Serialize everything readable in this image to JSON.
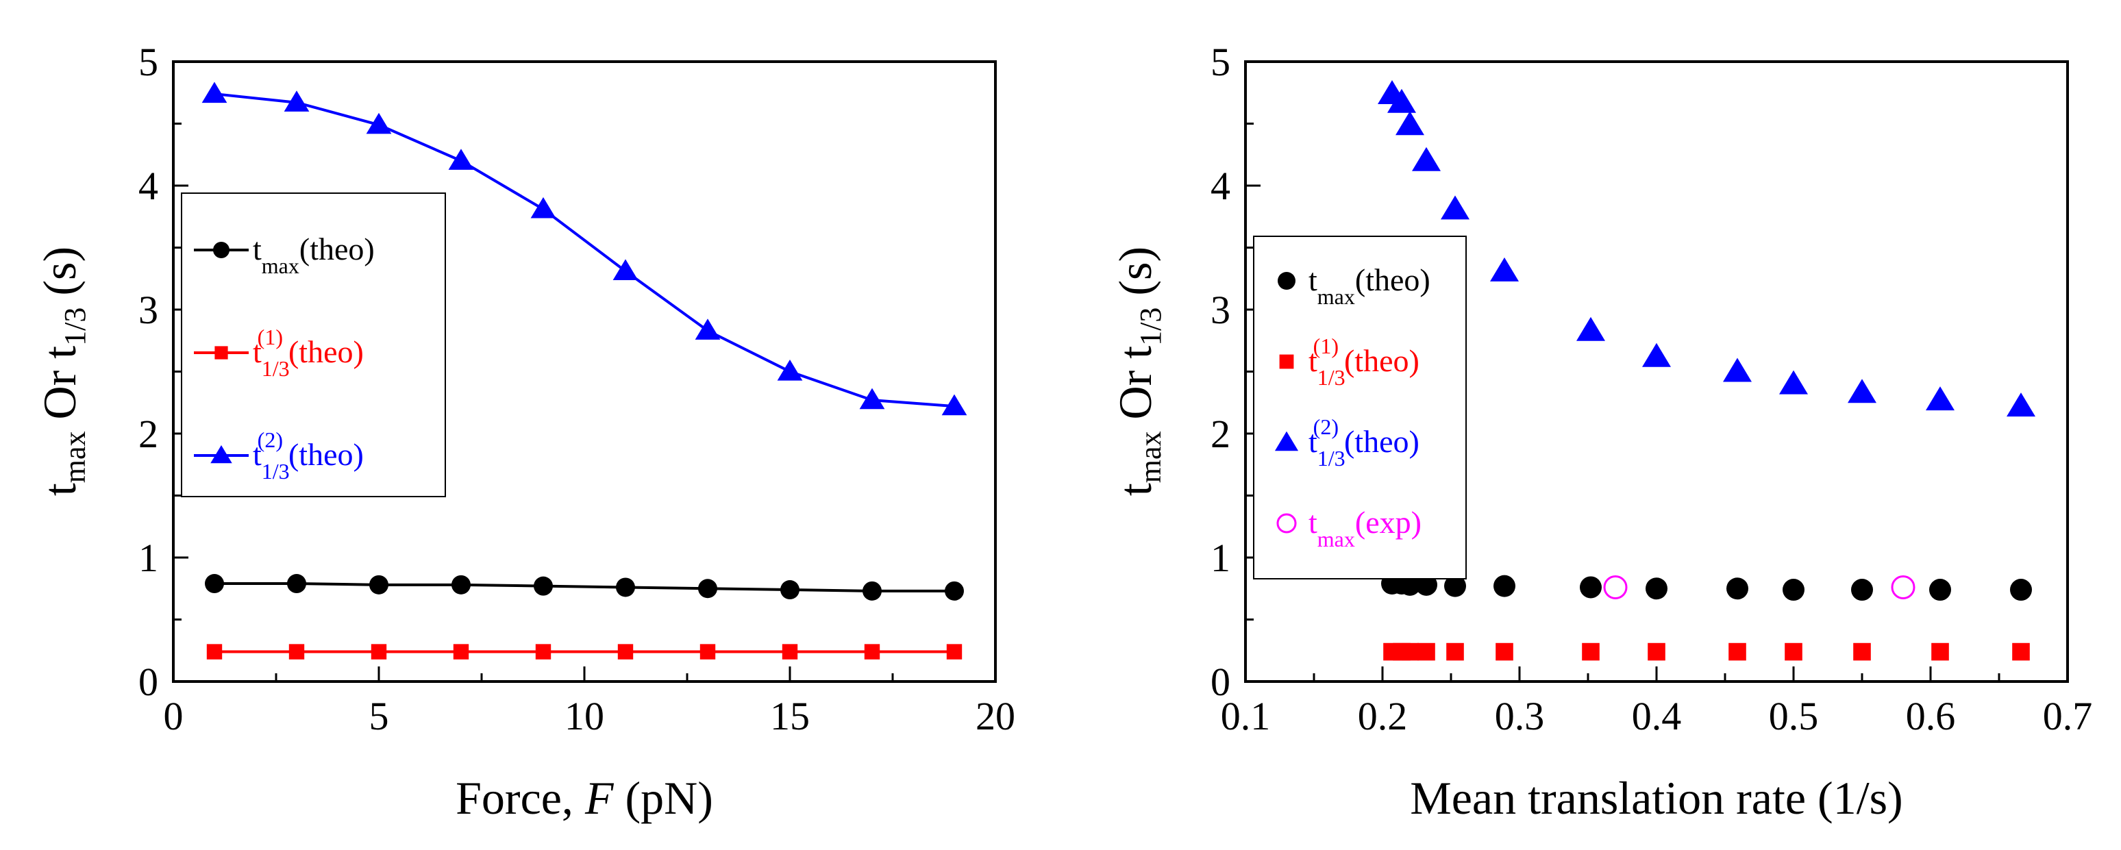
{
  "chart_data": [
    {
      "type": "line",
      "xlabel": "Force, F (pN)",
      "xlabel_parts": {
        "prefix": "Force, ",
        "italic": "F",
        "suffix": " (pN)"
      },
      "ylabel": "tmax Or t1/3 (s)",
      "ylabel_parts": {
        "t1": "t",
        "sub1": "max",
        "mid": " Or t",
        "sub2": "1/3",
        "end": " (s)"
      },
      "xlim": [
        0,
        20
      ],
      "ylim": [
        0,
        5
      ],
      "x_ticks": [
        0,
        5,
        10,
        15,
        20
      ],
      "y_ticks": [
        0,
        1,
        2,
        3,
        4,
        5
      ],
      "x_tick_labels": [
        "0",
        "5",
        "10",
        "15",
        "20"
      ],
      "y_tick_labels": [
        "0",
        "1",
        "2",
        "3",
        "4",
        "5"
      ],
      "legend_position": "middle-left",
      "series": [
        {
          "name": "tmax(theo)",
          "label_main": "t",
          "label_sub": "max",
          "label_sup": "",
          "label_tail": "(theo)",
          "color": "#000000",
          "text_color": "#000000",
          "marker": "circle",
          "connected": true,
          "x": [
            1,
            3,
            5,
            7,
            9,
            11,
            13,
            15,
            17,
            19
          ],
          "y": [
            0.79,
            0.79,
            0.78,
            0.78,
            0.77,
            0.76,
            0.75,
            0.74,
            0.73,
            0.73
          ]
        },
        {
          "name": "t1/3(1)(theo)",
          "label_main": "t",
          "label_sub": "1/3",
          "label_sup": "(1)",
          "label_tail": "(theo)",
          "color": "#ff0000",
          "text_color": "#ff0000",
          "marker": "square",
          "connected": true,
          "x": [
            1,
            3,
            5,
            7,
            9,
            11,
            13,
            15,
            17,
            19
          ],
          "y": [
            0.24,
            0.24,
            0.24,
            0.24,
            0.24,
            0.24,
            0.24,
            0.24,
            0.24,
            0.24
          ]
        },
        {
          "name": "t1/3(2)(theo)",
          "label_main": "t",
          "label_sub": "1/3",
          "label_sup": "(2)",
          "label_tail": "(theo)",
          "color": "#0000ff",
          "text_color": "#0000ff",
          "marker": "triangle",
          "connected": true,
          "x": [
            1,
            3,
            5,
            7,
            9,
            11,
            13,
            15,
            17,
            19
          ],
          "y": [
            4.74,
            4.67,
            4.49,
            4.2,
            3.81,
            3.31,
            2.83,
            2.5,
            2.27,
            2.22
          ]
        }
      ]
    },
    {
      "type": "scatter",
      "xlabel": "Mean translation rate (1/s)",
      "ylabel": "tmax Or t1/3 (s)",
      "ylabel_parts": {
        "t1": "t",
        "sub1": "max",
        "mid": " Or t",
        "sub2": "1/3",
        "end": " (s)"
      },
      "xlim": [
        0.1,
        0.7
      ],
      "ylim": [
        0,
        5
      ],
      "x_ticks": [
        0.1,
        0.2,
        0.3,
        0.4,
        0.5,
        0.6,
        0.7
      ],
      "y_ticks": [
        0,
        1,
        2,
        3,
        4,
        5
      ],
      "x_tick_labels": [
        "0.1",
        "0.2",
        "0.3",
        "0.4",
        "0.5",
        "0.6",
        "0.7"
      ],
      "y_tick_labels": [
        "0",
        "1",
        "2",
        "3",
        "4",
        "5"
      ],
      "legend_position": "middle-left",
      "series": [
        {
          "name": "tmax(theo)",
          "label_main": "t",
          "label_sub": "max",
          "label_sup": "",
          "label_tail": "(theo)",
          "color": "#000000",
          "text_color": "#000000",
          "marker": "circle",
          "connected": false,
          "x": [
            0.207,
            0.214,
            0.22,
            0.232,
            0.253,
            0.289,
            0.352,
            0.4,
            0.459,
            0.5,
            0.55,
            0.607,
            0.666
          ],
          "y": [
            0.79,
            0.79,
            0.78,
            0.78,
            0.77,
            0.77,
            0.76,
            0.75,
            0.75,
            0.74,
            0.74,
            0.74,
            0.74
          ]
        },
        {
          "name": "t1/3(1)(theo)",
          "label_main": "t",
          "label_sub": "1/3",
          "label_sup": "(1)",
          "label_tail": "(theo)",
          "color": "#ff0000",
          "text_color": "#ff0000",
          "marker": "square",
          "connected": false,
          "x": [
            0.207,
            0.214,
            0.22,
            0.232,
            0.253,
            0.289,
            0.352,
            0.4,
            0.459,
            0.5,
            0.55,
            0.607,
            0.666
          ],
          "y": [
            0.24,
            0.24,
            0.24,
            0.24,
            0.24,
            0.24,
            0.24,
            0.24,
            0.24,
            0.24,
            0.24,
            0.24,
            0.24
          ]
        },
        {
          "name": "t1/3(2)(theo)",
          "label_main": "t",
          "label_sub": "1/3",
          "label_sup": "(2)",
          "label_tail": "(theo)",
          "color": "#0000ff",
          "text_color": "#0000ff",
          "marker": "triangle",
          "connected": false,
          "x": [
            0.207,
            0.214,
            0.22,
            0.232,
            0.253,
            0.289,
            0.352,
            0.4,
            0.459,
            0.5,
            0.55,
            0.607,
            0.666
          ],
          "y": [
            4.74,
            4.67,
            4.49,
            4.2,
            3.81,
            3.31,
            2.83,
            2.62,
            2.5,
            2.4,
            2.33,
            2.27,
            2.22
          ]
        },
        {
          "name": "tmax(exp)",
          "label_main": "t",
          "label_sub": "max",
          "label_sup": "",
          "label_tail": "(exp)",
          "color": "#ff00ff",
          "text_color": "#ff00ff",
          "marker": "open-circle",
          "connected": false,
          "x": [
            0.37,
            0.58
          ],
          "y": [
            0.76,
            0.76
          ]
        }
      ]
    }
  ]
}
